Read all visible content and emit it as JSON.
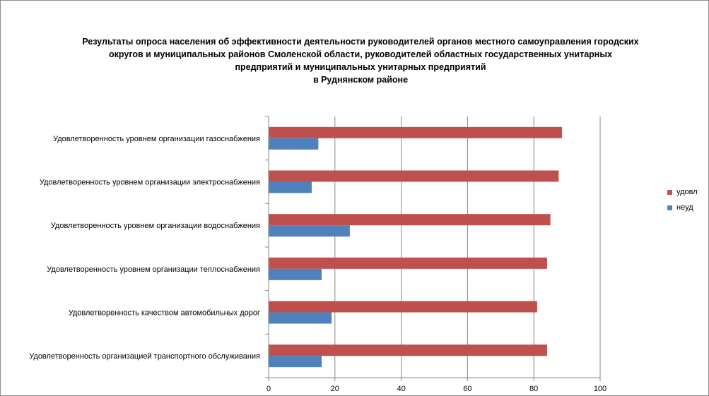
{
  "title_lines": [
    "Результаты опроса населения об эффективности деятельности руководителей органов местного самоуправления городских",
    "округов и муниципальных районов Смоленской области, руководителей областных государственных унитарных",
    "предприятий и муниципальных унитарных предприятий",
    "в Руднянском районе"
  ],
  "chart_data": {
    "type": "bar",
    "orientation": "horizontal",
    "categories": [
      "Удовлетворенность  уровнем  организации газоснабжения",
      "Удовлетворенность  уровнем организации электроснабжения",
      "Удовлетворенность  уровнем  организации водоснабжения",
      "Удовлетворенность  уровнем  организации теплоснабжения",
      "Удовлетворенность  качеством  автомобильных дорог",
      "Удовлетворенность  организацией  транспортного обслуживания"
    ],
    "series": [
      {
        "name": "удовл",
        "color": "#c0504d",
        "values": [
          88.5,
          87.5,
          85,
          84,
          81,
          84
        ]
      },
      {
        "name": "неуд",
        "color": "#4f81bd",
        "values": [
          15,
          13,
          24.5,
          16,
          19,
          16
        ]
      }
    ],
    "xlim": [
      0,
      100
    ],
    "x_ticks": [
      0,
      20,
      40,
      60,
      80,
      100
    ],
    "grid": true,
    "legend_position": "right"
  }
}
